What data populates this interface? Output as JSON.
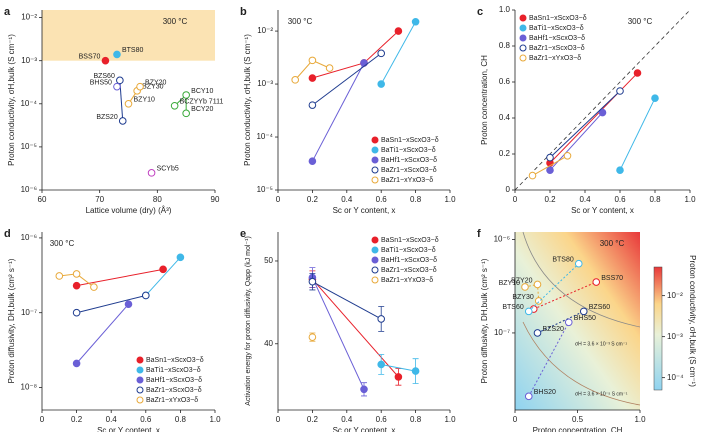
{
  "chart_data": [
    {
      "panel_label": "a",
      "type": "scatter",
      "xlabel": "Lattice volume (dry) (Å³)",
      "ylabel": "Proton conductivity, σH,bulk (S cm⁻¹)",
      "annotation": "300 °C",
      "xlim": [
        60,
        90
      ],
      "xticks": [
        60,
        70,
        80,
        90
      ],
      "ylog": true,
      "ylim": [
        1e-06,
        0.015
      ],
      "yticks": [
        {
          "value": 1e-06,
          "label": "10⁻⁶"
        },
        {
          "value": 1e-05,
          "label": "10⁻⁵"
        },
        {
          "value": 0.0001,
          "label": "10⁻⁴"
        },
        {
          "value": 0.001,
          "label": "10⁻³"
        },
        {
          "value": 0.01,
          "label": "10⁻²"
        }
      ],
      "highlight_ymin": 0.001,
      "series": [
        {
          "color": "#e8202a",
          "filled": true,
          "x": [
            71
          ],
          "values": [
            0.001
          ],
          "labels": [
            "BSS70"
          ]
        },
        {
          "color": "#3fb8e8",
          "filled": true,
          "x": [
            73
          ],
          "values": [
            0.0014
          ],
          "labels": [
            "BTS80"
          ]
        },
        {
          "color": "#1f3c8f",
          "filled": false,
          "x": [
            74,
            73.5
          ],
          "values": [
            4e-05,
            0.00035
          ],
          "labels": [
            "BZS20",
            "BZS60"
          ]
        },
        {
          "color": "#6a5fd6",
          "filled": false,
          "x": [
            73
          ],
          "values": [
            0.00025
          ],
          "labels": [
            "BHS50"
          ]
        },
        {
          "color": "#e8a93a",
          "filled": false,
          "x": [
            75,
            76.5,
            77
          ],
          "values": [
            0.0001,
            0.0002,
            0.00025
          ],
          "labels": [
            "BZY10",
            "BZY30",
            "BZY20"
          ]
        },
        {
          "color": "#c040c0",
          "filled": false,
          "x": [
            79
          ],
          "values": [
            2.5e-06
          ],
          "labels": [
            "SCYb5"
          ]
        },
        {
          "color": "#3aaa3a",
          "filled": false,
          "x": [
            83,
            85,
            85
          ],
          "values": [
            9e-05,
            0.00016,
            6e-05
          ],
          "labels": [
            "BCZYYb 7111",
            "BCY10",
            "BCY20"
          ]
        }
      ]
    },
    {
      "panel_label": "b",
      "type": "scatter",
      "xlabel": "Sc or Y content, x",
      "ylabel": "Proton conductivity, σH,bulk (S cm⁻¹)",
      "annotation": "300 °C",
      "xlim": [
        0,
        1
      ],
      "xticks": [
        0,
        0.2,
        0.4,
        0.6,
        0.8,
        {
          "value": 1,
          "label": "1.0"
        }
      ],
      "ylog": true,
      "ylim": [
        1e-05,
        0.025
      ],
      "yticks": [
        {
          "value": 1e-05,
          "label": "10⁻⁵"
        },
        {
          "value": 0.0001,
          "label": "10⁻⁴"
        },
        {
          "value": 0.001,
          "label": "10⁻³"
        },
        {
          "value": 0.01,
          "label": "10⁻²"
        }
      ],
      "legend": "lower right",
      "series": [
        {
          "name": "BaSn1−xScxO3−δ",
          "color": "#e8202a",
          "filled": true,
          "x": [
            0.2,
            0.5,
            0.7
          ],
          "values": [
            0.0013,
            0.0025,
            0.01
          ]
        },
        {
          "name": "BaTi1−xScxO3−δ",
          "color": "#3fb8e8",
          "filled": true,
          "x": [
            0.6,
            0.8
          ],
          "values": [
            0.001,
            0.015
          ]
        },
        {
          "name": "BaHf1−xScxO3−δ",
          "color": "#6a5fd6",
          "filled": true,
          "x": [
            0.2,
            0.5
          ],
          "values": [
            3.5e-05,
            0.0025
          ]
        },
        {
          "name": "BaZr1−xScxO3−δ",
          "color": "#1f3c8f",
          "filled": false,
          "x": [
            0.2,
            0.6
          ],
          "values": [
            0.0004,
            0.0038
          ]
        },
        {
          "name": "BaZr1−xYxO3−δ",
          "color": "#e8a93a",
          "filled": false,
          "x": [
            0.1,
            0.2,
            0.3
          ],
          "values": [
            0.0012,
            0.0028,
            0.002
          ]
        }
      ]
    },
    {
      "panel_label": "c",
      "type": "scatter",
      "xlabel": "Sc or Y content, x",
      "ylabel": "Proton concentration, CH",
      "annotation": "300 °C",
      "xlim": [
        0,
        1
      ],
      "xticks": [
        0,
        0.2,
        0.4,
        0.6,
        0.8,
        {
          "value": 1,
          "label": "1.0"
        }
      ],
      "ylim": [
        0,
        1
      ],
      "yticks": [
        0,
        0.2,
        0.4,
        0.6,
        0.8,
        {
          "value": 1,
          "label": "1.0"
        }
      ],
      "legend": "upper left",
      "diagonal": true,
      "series": [
        {
          "name": "BaSn1−xScxO3−δ",
          "color": "#e8202a",
          "filled": true,
          "x": [
            0.2,
            0.7
          ],
          "values": [
            0.15,
            0.65
          ]
        },
        {
          "name": "BaTi1−xScxO3−δ",
          "color": "#3fb8e8",
          "filled": true,
          "x": [
            0.6,
            0.8
          ],
          "values": [
            0.11,
            0.51
          ]
        },
        {
          "name": "BaHf1−xScxO3−δ",
          "color": "#6a5fd6",
          "filled": true,
          "x": [
            0.2,
            0.5
          ],
          "values": [
            0.11,
            0.43
          ]
        },
        {
          "name": "BaZr1−xScxO3−δ",
          "color": "#1f3c8f",
          "filled": false,
          "x": [
            0.2,
            0.6
          ],
          "values": [
            0.18,
            0.55
          ]
        },
        {
          "name": "BaZr1−xYxO3−δ",
          "color": "#e8a93a",
          "filled": false,
          "x": [
            0.1,
            0.3
          ],
          "values": [
            0.08,
            0.19
          ]
        }
      ]
    },
    {
      "panel_label": "d",
      "type": "scatter",
      "xlabel": "Sc or Y content, x",
      "ylabel": "Proton diffusivity, DH,bulk (cm² s⁻¹)",
      "annotation": "300 °C",
      "xlim": [
        0,
        1
      ],
      "xticks": [
        0,
        0.2,
        0.4,
        0.6,
        0.8,
        {
          "value": 1,
          "label": "1.0"
        }
      ],
      "ylog": true,
      "ylim": [
        5e-09,
        1.2e-06
      ],
      "yticks": [
        {
          "value": 1e-08,
          "label": "10⁻⁸"
        },
        {
          "value": 1e-07,
          "label": "10⁻⁷"
        },
        {
          "value": 1e-06,
          "label": "10⁻⁶"
        }
      ],
      "legend": "lower right",
      "series": [
        {
          "name": "BaSn1−xScxO3−δ",
          "color": "#e8202a",
          "filled": true,
          "x": [
            0.2,
            0.7
          ],
          "values": [
            2.3e-07,
            3.8e-07
          ]
        },
        {
          "name": "BaTi1−xScxO3−δ",
          "color": "#3fb8e8",
          "filled": true,
          "x": [
            0.6,
            0.8
          ],
          "values": [
            1.7e-07,
            5.5e-07
          ]
        },
        {
          "name": "BaHf1−xScxO3−δ",
          "color": "#6a5fd6",
          "filled": true,
          "x": [
            0.2,
            0.5
          ],
          "values": [
            2.1e-08,
            1.3e-07
          ]
        },
        {
          "name": "BaZr1−xScxO3−δ",
          "color": "#1f3c8f",
          "filled": false,
          "x": [
            0.2,
            0.6
          ],
          "values": [
            1e-07,
            1.7e-07
          ]
        },
        {
          "name": "BaZr1−xYxO3−δ",
          "color": "#e8a93a",
          "filled": false,
          "x": [
            0.1,
            0.2,
            0.3
          ],
          "values": [
            3.1e-07,
            3.3e-07,
            2.2e-07
          ]
        }
      ]
    },
    {
      "panel_label": "e",
      "type": "scatter",
      "xlabel": "Sc or Y content, x",
      "ylabel": "Activation energy for proton diffusivity, Qapp (kJ mol⁻¹)",
      "xlim": [
        0,
        1
      ],
      "xticks": [
        0,
        0.2,
        0.4,
        0.6,
        0.8,
        {
          "value": 1,
          "label": "1.0"
        }
      ],
      "ylim": [
        32,
        53.5
      ],
      "yticks": [
        40,
        50
      ],
      "legend": "upper right",
      "series": [
        {
          "name": "BaSn1−xScxO3−δ",
          "color": "#e8202a",
          "filled": true,
          "x": [
            0.2,
            0.7
          ],
          "values": [
            47.8,
            36
          ],
          "errors": [
            1,
            1
          ]
        },
        {
          "name": "BaTi1−xScxO3−δ",
          "color": "#3fb8e8",
          "filled": true,
          "x": [
            0.6,
            0.8
          ],
          "values": [
            37.5,
            36.7
          ],
          "errors": [
            1.2,
            1.5
          ]
        },
        {
          "name": "BaHf1−xScxO3−δ",
          "color": "#6a5fd6",
          "filled": true,
          "x": [
            0.2,
            0.5
          ],
          "values": [
            48,
            34.5
          ],
          "errors": [
            1.2,
            0.8
          ]
        },
        {
          "name": "BaZr1−xScxO3−δ",
          "color": "#1f3c8f",
          "filled": false,
          "x": [
            0.2,
            0.6
          ],
          "values": [
            47.5,
            43
          ],
          "errors": [
            1,
            1.5
          ]
        },
        {
          "name": "BaZr1−xYxO3−δ",
          "color": "#e8a93a",
          "filled": false,
          "x": [
            0.2
          ],
          "values": [
            40.8
          ],
          "errors": [
            0.5
          ]
        }
      ]
    },
    {
      "panel_label": "f",
      "type": "scatter",
      "xlabel": "Proton concentration, CH",
      "ylabel": "Proton diffusivity, DH,bulk (cm² s⁻¹)",
      "annotation": "300 °C",
      "xlim": [
        0,
        1
      ],
      "xticks": [
        0,
        0.5,
        {
          "value": 1,
          "label": "1.0"
        }
      ],
      "ylog": true,
      "ylim": [
        1.5e-08,
        1.2e-06
      ],
      "yticks": [
        {
          "value": 1e-07,
          "label": "10⁻⁷"
        },
        {
          "value": 1e-06,
          "label": "10⁻⁶"
        }
      ],
      "contour_labels": [
        "σH = 3.6 × 10⁻³ S cm⁻¹",
        "σH = 3.6 × 10⁻⁵ S cm⁻¹"
      ],
      "colorbar": {
        "label": "Proton conductivity, σH,bulk (S cm⁻¹)",
        "lim": [
          5e-05,
          0.05
        ],
        "ticks": [
          {
            "value": 0.0001,
            "label": "10⁻⁴"
          },
          {
            "value": 0.001,
            "label": "10⁻³"
          },
          {
            "value": 0.01,
            "label": "10⁻²"
          }
        ]
      },
      "series": [
        {
          "color": "#e8a93a",
          "filled": false,
          "x": [
            0.08,
            0.18,
            0.19
          ],
          "values": [
            3.1e-07,
            3.3e-07,
            2.2e-07
          ],
          "labels": [
            "BZY10",
            "BZY20",
            "BZY30"
          ]
        },
        {
          "color": "#e8202a",
          "filled": false,
          "x": [
            0.15,
            0.65
          ],
          "values": [
            1.8e-07,
            3.5e-07
          ],
          "labels": [
            null,
            "BSS70"
          ]
        },
        {
          "color": "#3fb8e8",
          "filled": false,
          "x": [
            0.11,
            0.51
          ],
          "values": [
            1.7e-07,
            5.5e-07
          ],
          "labels": [
            "BTS60",
            "BTS80"
          ]
        },
        {
          "color": "#6a5fd6",
          "filled": false,
          "x": [
            0.11,
            0.43
          ],
          "values": [
            2.1e-08,
            1.3e-07
          ],
          "labels": [
            "BHS20",
            "BHS50"
          ]
        },
        {
          "color": "#1f3c8f",
          "filled": false,
          "x": [
            0.18,
            0.55
          ],
          "values": [
            1e-07,
            1.7e-07
          ],
          "labels": [
            "BZS20",
            "BZS60"
          ]
        }
      ]
    }
  ]
}
